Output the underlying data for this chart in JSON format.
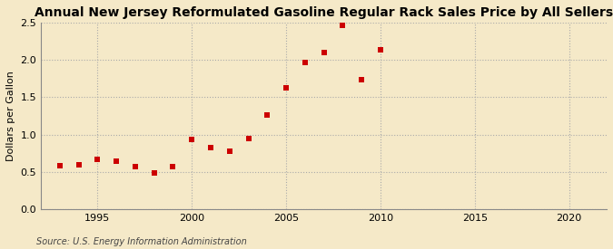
{
  "title": "Annual New Jersey Reformulated Gasoline Regular Rack Sales Price by All Sellers",
  "ylabel": "Dollars per Gallon",
  "source": "Source: U.S. Energy Information Administration",
  "background_color": "#f5e9c8",
  "plot_bg_color": "#f5e9c8",
  "years": [
    1993,
    1994,
    1995,
    1996,
    1997,
    1998,
    1999,
    2000,
    2001,
    2002,
    2003,
    2004,
    2005,
    2006,
    2007,
    2008,
    2009,
    2010
  ],
  "values": [
    0.59,
    0.6,
    0.67,
    0.65,
    0.57,
    0.49,
    0.57,
    0.94,
    0.83,
    0.78,
    0.95,
    1.26,
    1.63,
    1.97,
    2.1,
    2.46,
    1.74,
    2.13
  ],
  "marker_color": "#cc0000",
  "marker": "s",
  "marker_size": 4,
  "xlim": [
    1992,
    2022
  ],
  "ylim": [
    0.0,
    2.5
  ],
  "yticks": [
    0.0,
    0.5,
    1.0,
    1.5,
    2.0,
    2.5
  ],
  "xticks": [
    1995,
    2000,
    2005,
    2010,
    2015,
    2020
  ],
  "grid_color": "#aaaaaa",
  "grid_style": ":",
  "title_fontsize": 10,
  "label_fontsize": 8,
  "tick_fontsize": 8,
  "source_fontsize": 7
}
